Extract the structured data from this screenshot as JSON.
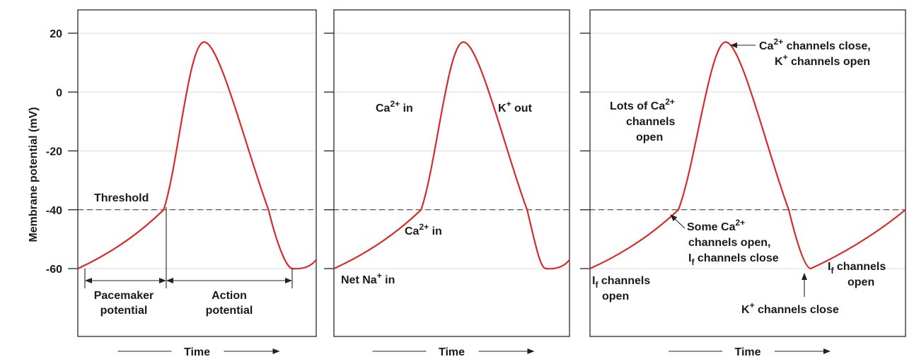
{
  "chart_data": {
    "type": "line",
    "ylabel": "Membrane potential (mV)",
    "xlabel": "Time",
    "yticks": [
      20,
      0,
      -20,
      -40,
      -60
    ],
    "ylim": [
      -85,
      28
    ],
    "threshold_mV": -40,
    "threshold_label": "Threshold",
    "grid": true,
    "panels": [
      {
        "id": "p1",
        "curve": [
          [
            0,
            -60
          ],
          [
            0.36,
            -40
          ],
          [
            0.53,
            17
          ],
          [
            0.8,
            -40
          ],
          [
            0.9,
            -60
          ],
          [
            1.0,
            -57
          ]
        ]
      },
      {
        "id": "p2",
        "curve": [
          [
            0,
            -60
          ],
          [
            0.37,
            -40
          ],
          [
            0.55,
            17
          ],
          [
            0.82,
            -40
          ],
          [
            0.9,
            -60
          ],
          [
            1.0,
            -57
          ]
        ]
      },
      {
        "id": "p3",
        "curve": [
          [
            0,
            -60
          ],
          [
            0.28,
            -40
          ],
          [
            0.43,
            17
          ],
          [
            0.63,
            -40
          ],
          [
            0.7,
            -60
          ],
          [
            1.0,
            -40
          ]
        ]
      }
    ]
  },
  "panel1": {
    "threshold": "Threshold",
    "pacemaker_1": "Pacemaker",
    "pacemaker_2": "potential",
    "action_1": "Action",
    "action_2": "potential"
  },
  "panel2": {
    "ca_in_upper_main": "Ca",
    "ca_in_upper_sup": "2+",
    "ca_in_upper_rest": " in",
    "k_out_main": "K",
    "k_out_sup": "+",
    "k_out_rest": " out",
    "ca_in_lower_main": "Ca",
    "ca_in_lower_sup": "2+",
    "ca_in_lower_rest": " in",
    "net_na_main": "Net Na",
    "net_na_sup": "+",
    "net_na_rest": " in"
  },
  "panel3": {
    "peak_1_main": "Ca",
    "peak_1_sup": "2+",
    "peak_1_rest": " channels close,",
    "peak_2_main": "K",
    "peak_2_sup": "+",
    "peak_2_rest": " channels open",
    "lots_1_main": "Lots of Ca",
    "lots_1_sup": "2+",
    "lots_2": "channels",
    "lots_3": "open",
    "some_1_main": "Some Ca",
    "some_1_sup": "2+",
    "some_2": "channels open,",
    "some_3_main": "I",
    "some_3_sub": "f",
    "some_3_rest": " channels close",
    "if_open_l1_main": "I",
    "if_open_l1_sub": "f",
    "if_open_l1_rest": " channels",
    "if_open_l2": "open",
    "if_open_r1_main": "I",
    "if_open_r1_sub": "f",
    "if_open_r1_rest": " channels",
    "if_open_r2": "open",
    "k_close_main": "K",
    "k_close_sup": "+",
    "k_close_rest": " channels close"
  }
}
